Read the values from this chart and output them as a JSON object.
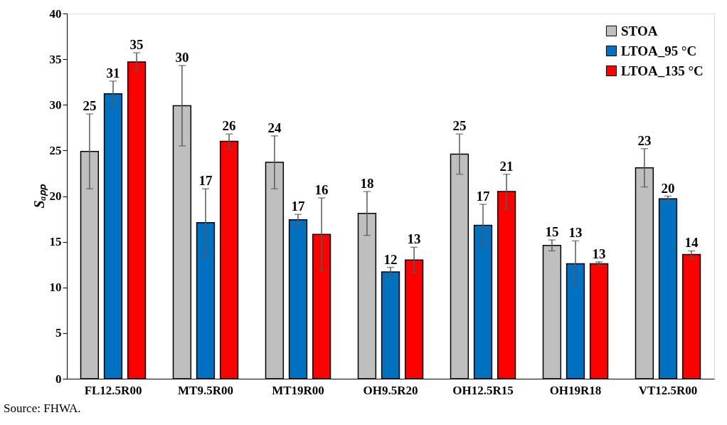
{
  "chart_data": {
    "type": "bar",
    "ylabel": "Sₐₚₚ",
    "categories": [
      "FL12.5R00",
      "MT9.5R00",
      "MT19R00",
      "OH9.5R20",
      "OH12.5R15",
      "OH19R18",
      "VT12.5R00"
    ],
    "series": [
      {
        "name": "STOA",
        "color": "#bfbfbf",
        "values": [
          24.9,
          29.9,
          23.7,
          18.1,
          24.6,
          14.6,
          23.1
        ],
        "errors": [
          4.1,
          4.4,
          2.9,
          2.4,
          2.2,
          0.6,
          2.1
        ],
        "value_labels": [
          "25",
          "30",
          "24",
          "18",
          "25",
          "15",
          "23"
        ]
      },
      {
        "name": "LTOA_95 °C",
        "color": "#0070c0",
        "values": [
          31.2,
          17.1,
          17.4,
          11.7,
          16.8,
          12.6,
          19.7
        ],
        "errors": [
          1.4,
          3.7,
          0.6,
          0.5,
          2.3,
          2.5,
          0.3
        ],
        "value_labels": [
          "31",
          "17",
          "17",
          "12",
          "17",
          "13",
          "20"
        ]
      },
      {
        "name": "LTOA_135 °C",
        "color": "#ff0000",
        "values": [
          34.7,
          26.0,
          15.8,
          13.0,
          20.5,
          12.6,
          13.6
        ],
        "errors": [
          1.0,
          0.8,
          4.0,
          1.4,
          1.9,
          0.2,
          0.4
        ],
        "value_labels": [
          "35",
          "26",
          "16",
          "13",
          "21",
          "13",
          "14"
        ]
      }
    ],
    "ylim": [
      0,
      40
    ],
    "yticks": [
      0,
      5,
      10,
      15,
      20,
      25,
      30,
      35,
      40
    ],
    "grid": false,
    "legend": "top right",
    "annotations": [
      "Source: FHWA."
    ]
  }
}
